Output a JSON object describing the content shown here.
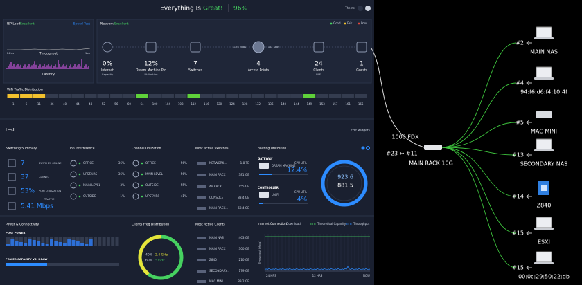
{
  "header": {
    "status": "Everything Is",
    "status_highlight": "Great!",
    "score": "96%",
    "theme": "Theme"
  },
  "isp": {
    "title": "ISP Load:",
    "status": "Excellent",
    "action": "Speed Test",
    "throughput": "Throughput",
    "latency": "Latency",
    "start": "24hrs",
    "end": "Now"
  },
  "network": {
    "title": "Network:",
    "status": "Excellent",
    "legend": [
      "Good",
      "Fair",
      "Poor"
    ],
    "links": [
      "1.94 Mbps",
      "182 Kbps"
    ],
    "stats": [
      {
        "value": "0%",
        "label": "Internet",
        "sub": "Capacity"
      },
      {
        "value": "12%",
        "label": "Dream Machine Pro",
        "sub": "Utilization"
      },
      {
        "value": "7",
        "label": "Switches"
      },
      {
        "value": "4",
        "label": "Access Points"
      },
      {
        "value": "24",
        "label": "Clients",
        "sub": "WiFi"
      },
      {
        "value": "1",
        "label": "Guests"
      }
    ]
  },
  "wifi": {
    "title": "WiFi Traffic Distribution",
    "channels": [
      "1",
      "6",
      "11",
      "36",
      "40",
      "44",
      "48",
      "52",
      "56",
      "60",
      "64",
      "100",
      "104",
      "108",
      "112",
      "116",
      "120",
      "124",
      "128",
      "132",
      "136",
      "140",
      "144",
      "149",
      "153",
      "157",
      "161",
      "165"
    ]
  },
  "dashboard": {
    "name": "test",
    "edit": "Edit widgets"
  },
  "switching": {
    "title": "Switching Summary",
    "items": [
      {
        "value": "7",
        "label": "SWITCHES ONLINE"
      },
      {
        "value": "37",
        "label": "CLIENTS"
      },
      {
        "value": "53%",
        "label": "PORT UTILIZATION"
      },
      {
        "value": "5.41 Mbps",
        "label": "TRAFFIC"
      }
    ]
  },
  "interference": {
    "title": "Top Interference",
    "items": [
      {
        "name": "OFFICE",
        "value": "36%"
      },
      {
        "name": "UPSTAIRS",
        "value": "36%"
      },
      {
        "name": "MAIN LEVEL",
        "value": "3%"
      },
      {
        "name": "OUTSIDE",
        "value": "1%"
      }
    ]
  },
  "channel_util": {
    "title": "Channel Utilization",
    "items": [
      {
        "name": "OFFICE",
        "value": "56%"
      },
      {
        "name": "MAIN LEVEL",
        "value": "56%"
      },
      {
        "name": "OUTSIDE",
        "value": "55%"
      },
      {
        "name": "UPSTAIRS",
        "value": "41%"
      }
    ]
  },
  "active_switches": {
    "title": "Most Active Switches",
    "items": [
      {
        "name": "NETWORK...",
        "value": "1.8 TB"
      },
      {
        "name": "MAIN RACK",
        "value": "381 GB"
      },
      {
        "name": "AV RACK",
        "value": "155 GB"
      },
      {
        "name": "CONSOLE",
        "value": "83.4 GB"
      },
      {
        "name": "MAIN RACK...",
        "value": "68.4 GB"
      }
    ]
  },
  "routing": {
    "title": "Routing Utilization",
    "gateway": {
      "label": "GATEWAY",
      "device": "DREAM MACHINE",
      "metric": "CPU UTIL",
      "value": "12.4%"
    },
    "controller": {
      "label": "CONTROLLER",
      "device": "UNIFI",
      "metric": "CPU UTIL",
      "value": "4%"
    },
    "totals": [
      "923.6",
      "881.5"
    ]
  },
  "power": {
    "title": "Power & Connectivity",
    "port_power": "PORT POWER",
    "capacity": "POWER CAPACITY VS. DRAW"
  },
  "freq": {
    "title": "Clients Freq Distribution",
    "bands": [
      {
        "share": "40%",
        "name": "2.4 GHz"
      },
      {
        "share": "60%",
        "name": "5 GHz"
      }
    ]
  },
  "active_clients": {
    "title": "Most Active Clients",
    "items": [
      {
        "name": "MAIN NAS",
        "value": "463 GB"
      },
      {
        "name": "MAIN RACK",
        "value": "300 GB"
      },
      {
        "name": "Z840",
        "value": "210 GB"
      },
      {
        "name": "SECONDARY...",
        "value": "179 GB"
      },
      {
        "name": "MAC MINI",
        "value": "89.2 GB"
      }
    ]
  },
  "internet": {
    "title": "Internet Connection",
    "mode": "Download",
    "legend": [
      "Theoretical Capacity",
      "Throughput"
    ],
    "y_label": "Throughput (Mbps)",
    "x_labels": [
      "24 HRS",
      "12 HRS",
      "NOW"
    ]
  },
  "topology": {
    "link": "1000 FDX",
    "ports": "#23 ↔ #11",
    "switch": "MAIN RACK 10G",
    "devices": [
      {
        "port": "#2",
        "name": "MAIN NAS"
      },
      {
        "port": "#4",
        "name": "94:f6:d6:f4:10:4f"
      },
      {
        "port": "#5",
        "name": "MAC MINI"
      },
      {
        "port": "#13",
        "name": "SECONDARY NAS"
      },
      {
        "port": "#14",
        "name": "Z840"
      },
      {
        "port": "#15",
        "name": "ESXI"
      },
      {
        "port": "#15",
        "name": "00:0c:29:50:22:db"
      }
    ]
  }
}
